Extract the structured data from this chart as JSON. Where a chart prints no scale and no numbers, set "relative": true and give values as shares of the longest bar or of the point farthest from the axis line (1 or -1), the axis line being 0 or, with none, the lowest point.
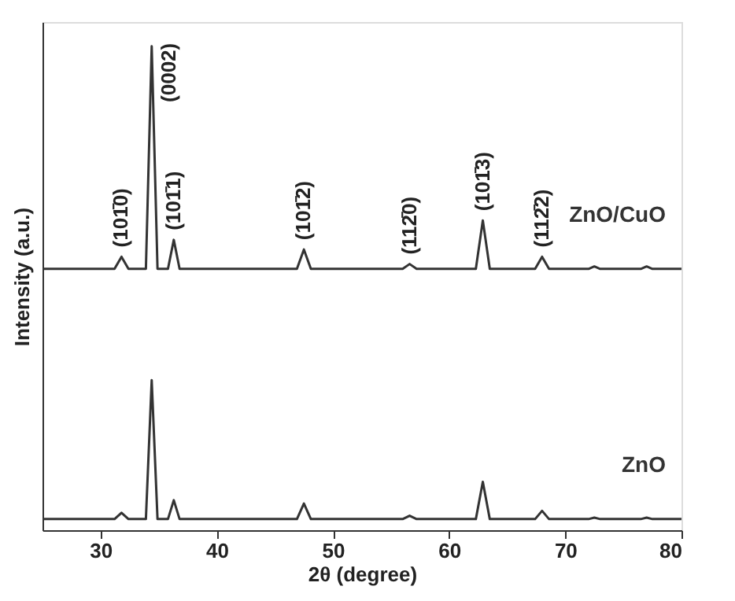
{
  "chart_data": {
    "type": "line",
    "relative": true,
    "xlabel": "2θ (degree)",
    "ylabel": "Intensity (a.u.)",
    "xlim": [
      25,
      80
    ],
    "xticks": [
      30,
      40,
      50,
      60,
      70,
      80
    ],
    "grid": false,
    "marker": "none",
    "line_style": "solid",
    "series": [
      {
        "name": "ZnO/CuO",
        "color": "#333333",
        "x": [
          25,
          31.2,
          31.8,
          32.4,
          33.9,
          34.4,
          34.9,
          35.8,
          36.3,
          36.8,
          46.9,
          47.5,
          48.1,
          56.0,
          56.6,
          57.2,
          62.3,
          62.9,
          63.5,
          67.4,
          68.0,
          68.6,
          72.0,
          72.5,
          73.0,
          76.5,
          77.0,
          77.5,
          80
        ],
        "values": [
          0.54,
          0.54,
          0.565,
          0.54,
          0.54,
          1.0,
          0.54,
          0.54,
          0.6,
          0.54,
          0.54,
          0.58,
          0.54,
          0.54,
          0.55,
          0.54,
          0.54,
          0.64,
          0.54,
          0.54,
          0.565,
          0.54,
          0.54,
          0.545,
          0.54,
          0.54,
          0.545,
          0.54,
          0.54
        ]
      },
      {
        "name": "ZnO",
        "color": "#333333",
        "x": [
          25,
          31.2,
          31.8,
          32.4,
          33.9,
          34.4,
          34.9,
          35.8,
          36.3,
          36.8,
          46.9,
          47.5,
          48.1,
          56.0,
          56.6,
          57.2,
          62.3,
          62.9,
          63.5,
          67.4,
          68.0,
          68.6,
          72.0,
          72.5,
          73.0,
          76.5,
          77.0,
          77.5,
          80
        ],
        "values": [
          0.023,
          0.023,
          0.036,
          0.023,
          0.023,
          0.31,
          0.023,
          0.023,
          0.062,
          0.023,
          0.023,
          0.055,
          0.023,
          0.023,
          0.03,
          0.023,
          0.023,
          0.1,
          0.023,
          0.023,
          0.04,
          0.023,
          0.023,
          0.026,
          0.023,
          0.023,
          0.026,
          0.023,
          0.023
        ]
      }
    ],
    "annotations": [
      {
        "text": "(101̄0)",
        "x": 31.8,
        "y": 0.565
      },
      {
        "text": "(0002)",
        "x": 34.4,
        "y": 1.0
      },
      {
        "text": "(101̄1)",
        "x": 36.3,
        "y": 0.6
      },
      {
        "text": "(101̄2)",
        "x": 47.5,
        "y": 0.58
      },
      {
        "text": "(112̄0)",
        "x": 56.6,
        "y": 0.55
      },
      {
        "text": "(101̄3)",
        "x": 62.9,
        "y": 0.64
      },
      {
        "text": "(112̄2)",
        "x": 68.0,
        "y": 0.565
      }
    ]
  }
}
